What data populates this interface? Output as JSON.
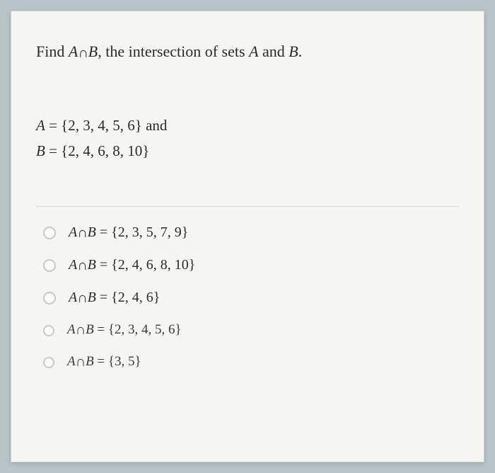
{
  "question": {
    "prompt_prefix": "Find ",
    "prompt_expr_A": "A",
    "prompt_expr_int": "∩",
    "prompt_expr_B": "B",
    "prompt_suffix": ", the intersection of sets ",
    "prompt_A": "A",
    "prompt_and": " and ",
    "prompt_B": "B",
    "prompt_end": "."
  },
  "sets": {
    "line1_A": "A",
    "line1_rest": " = {2, 3, 4, 5, 6} and",
    "line2_B": "B",
    "line2_rest": " = {2, 4, 6, 8, 10}"
  },
  "options": [
    {
      "A": "A",
      "int": "∩",
      "B": "B",
      "rest": " = {2, 3, 5, 7, 9}"
    },
    {
      "A": "A",
      "int": "∩",
      "B": "B",
      "rest": " = {2, 4, 6, 8, 10}"
    },
    {
      "A": "A",
      "int": "∩",
      "B": "B",
      "rest": " = {2, 4, 6}"
    },
    {
      "A": "A",
      "int": "∩",
      "B": "B",
      "rest": " = {2, 3, 4, 5, 6}"
    },
    {
      "A": "A",
      "int": "∩",
      "B": "B",
      "rest": " = {3, 5}"
    }
  ],
  "styling": {
    "background_color": "#b8c4c8",
    "card_background": "#f5f5f2",
    "card_border": "#d0d0cc",
    "text_color": "#2a2a2a",
    "radio_border": "#c8c8c4",
    "divider_color": "#d8d8d4",
    "prompt_fontsize": 22,
    "sets_fontsize": 21,
    "option_fontsize": 20
  }
}
